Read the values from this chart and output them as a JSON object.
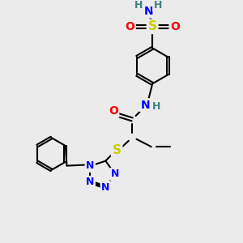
{
  "background_color": "#ebebeb",
  "atom_colors": {
    "C": "#000000",
    "N": "#0000ff",
    "O": "#ff0000",
    "S": "#cccc00",
    "H": "#408080"
  },
  "bond_color": "#000000",
  "bond_width": 1.5,
  "dbo": 0.06,
  "fs": 10
}
